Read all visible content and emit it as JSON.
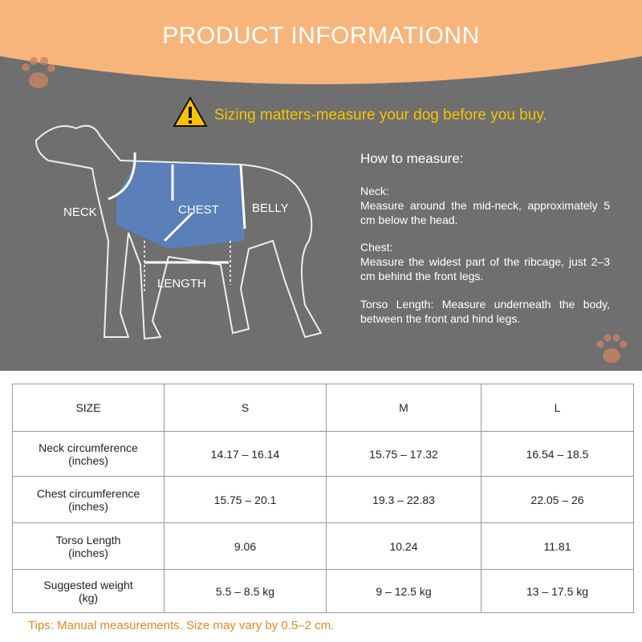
{
  "header": {
    "title": "PRODUCT INFORMATIONN"
  },
  "warning": "Sizing matters-measure your dog before you buy.",
  "diagram": {
    "labels": {
      "neck": "NECK",
      "chest": "CHEST",
      "belly": "BELLY",
      "length": "LENGTH"
    }
  },
  "instructions": {
    "title": "How to measure:",
    "items": [
      {
        "heading": "Neck:",
        "text": "Measure around the mid-neck, approximately 5 cm below the head."
      },
      {
        "heading": "Chest:",
        "text": "Measure the widest part of the ribcage, just 2–3 cm behind the front legs."
      },
      {
        "text": "Torso Length: Measure underneath the body, between the front and hind legs."
      }
    ]
  },
  "table": {
    "header": [
      "SIZE",
      "S",
      "M",
      "L"
    ],
    "rows": [
      [
        "Neck circumference\n(inches)",
        "14.17 – 16.14",
        "15.75 – 17.32",
        "16.54 – 18.5"
      ],
      [
        "Chest circumference\n(inches)",
        "15.75 – 20.1",
        "19.3 – 22.83",
        "22.05 – 26"
      ],
      [
        "Torso Length\n(inches)",
        "9.06",
        "10.24",
        "11.81"
      ],
      [
        "Suggested weight\n(kg)",
        "5.5 – 8.5 kg",
        "9 – 12.5 kg",
        "13 – 17.5 kg"
      ]
    ]
  },
  "tips": "Tips: Manual measurements. Size may vary by 0.5–2 cm."
}
